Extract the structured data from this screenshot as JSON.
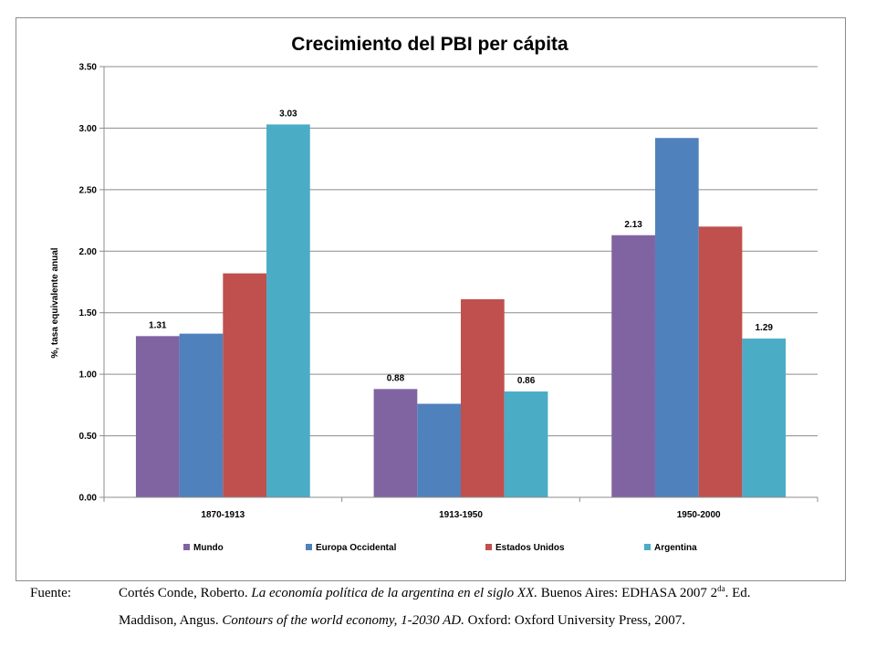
{
  "chart_data": {
    "type": "bar",
    "title": "Crecimiento del PBI per cápita",
    "ylabel": "%, tasa equivalente anual",
    "xlabel": "",
    "ylim": [
      0,
      3.5
    ],
    "yticks": [
      "0.00",
      "0.50",
      "1.00",
      "1.50",
      "2.00",
      "2.50",
      "3.00",
      "3.50"
    ],
    "grid": true,
    "legend_position": "bottom",
    "categories": [
      "1870-1913",
      "1913-1950",
      "1950-2000"
    ],
    "series": [
      {
        "name": "Mundo",
        "color": "#8064a2",
        "values": [
          1.31,
          0.88,
          2.13
        ],
        "labels": [
          "1.31",
          "0.88",
          "2.13"
        ]
      },
      {
        "name": "Europa Occidental",
        "color": "#4f81bd",
        "values": [
          1.33,
          0.76,
          2.92
        ],
        "labels": [
          "",
          "",
          ""
        ]
      },
      {
        "name": "Estados Unidos",
        "color": "#c0504d",
        "values": [
          1.82,
          1.61,
          2.2
        ],
        "labels": [
          "",
          "",
          ""
        ]
      },
      {
        "name": "Argentina",
        "color": "#4bacc6",
        "values": [
          3.03,
          0.86,
          1.29
        ],
        "labels": [
          "3.03",
          "0.86",
          "1.29"
        ]
      }
    ]
  },
  "source": {
    "label": "Fuente:",
    "line1": {
      "author": "Cortés Conde, Roberto.",
      "work": "La economía política de la argentina en el siglo XX.",
      "publisher": "Buenos Aires: EDHASA 2007 2",
      "edition_sup": "da",
      "edition_tail": ". Ed."
    },
    "line2": {
      "author": "Maddison, Angus.",
      "work": "Contours of the world economy, 1-2030 AD.",
      "publisher": "Oxford: Oxford University Press, 2007."
    }
  }
}
